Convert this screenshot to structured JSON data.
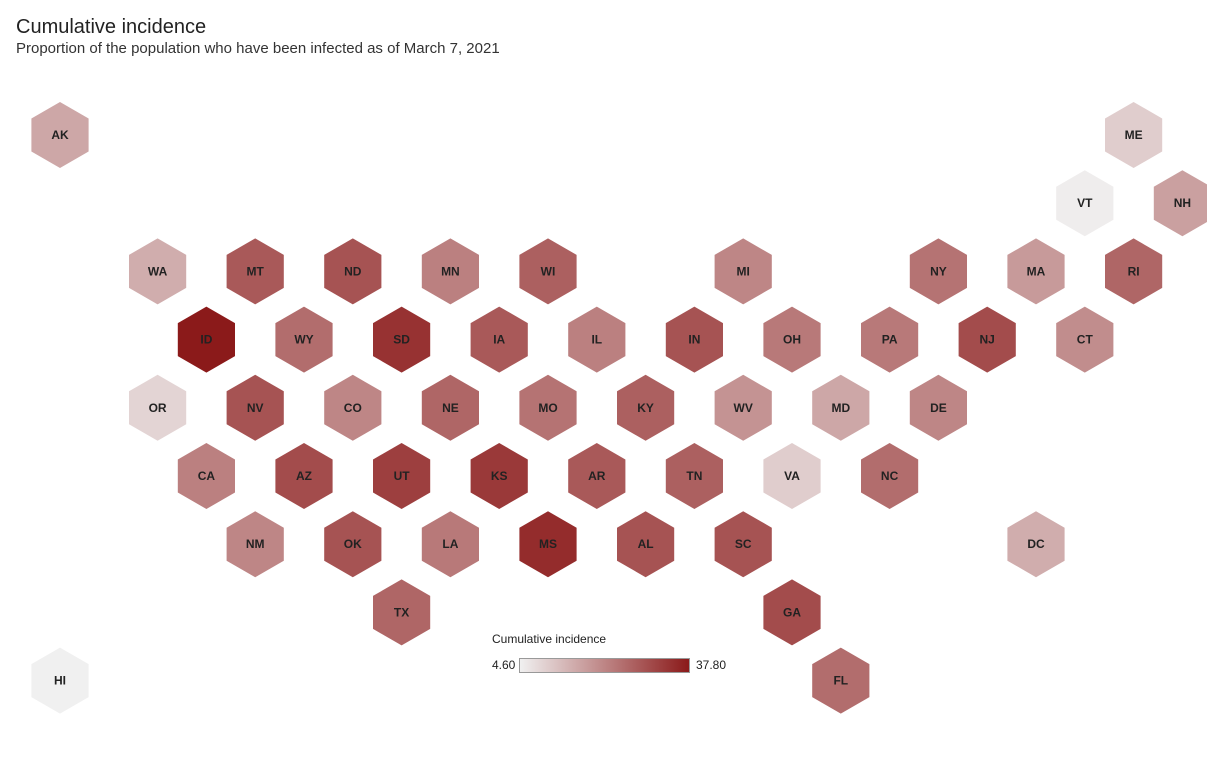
{
  "header": {
    "title": "Cumulative incidence",
    "subtitle": "Proportion of the population who have been infected as of March 7, 2021"
  },
  "legend": {
    "title": "Cumulative incidence",
    "min_label": "4.60",
    "max_label": "37.80",
    "color_low": "#f0f0f0",
    "color_high": "#8b1a1a"
  },
  "chart_data": {
    "type": "heatmap",
    "title": "Cumulative incidence",
    "subtitle": "Proportion of the population who have been infected as of March 7, 2021",
    "value_range": [
      4.6,
      37.8
    ],
    "states": [
      {
        "code": "AK",
        "row": 0,
        "col": 0,
        "value": 16
      },
      {
        "code": "ME",
        "row": 0,
        "col": 11,
        "value": 10
      },
      {
        "code": "VT",
        "row": 1,
        "col": 10,
        "value": 5
      },
      {
        "code": "NH",
        "row": 1,
        "col": 11,
        "value": 17
      },
      {
        "code": "WA",
        "row": 2,
        "col": 1,
        "value": 15
      },
      {
        "code": "MT",
        "row": 2,
        "col": 2,
        "value": 28
      },
      {
        "code": "ND",
        "row": 2,
        "col": 3,
        "value": 29
      },
      {
        "code": "MN",
        "row": 2,
        "col": 4,
        "value": 22
      },
      {
        "code": "WI",
        "row": 2,
        "col": 5,
        "value": 27
      },
      {
        "code": "MI",
        "row": 2,
        "col": 7,
        "value": 21
      },
      {
        "code": "NY",
        "row": 2,
        "col": 9,
        "value": 24
      },
      {
        "code": "MA",
        "row": 2,
        "col": 10,
        "value": 18
      },
      {
        "code": "RI",
        "row": 2,
        "col": 11,
        "value": 26
      },
      {
        "code": "ID",
        "row": 3,
        "col": 1,
        "value": 37.8
      },
      {
        "code": "WY",
        "row": 3,
        "col": 2,
        "value": 25
      },
      {
        "code": "SD",
        "row": 3,
        "col": 3,
        "value": 34
      },
      {
        "code": "IA",
        "row": 3,
        "col": 4,
        "value": 28
      },
      {
        "code": "IL",
        "row": 3,
        "col": 5,
        "value": 22
      },
      {
        "code": "IN",
        "row": 3,
        "col": 6,
        "value": 29
      },
      {
        "code": "OH",
        "row": 3,
        "col": 7,
        "value": 23
      },
      {
        "code": "PA",
        "row": 3,
        "col": 8,
        "value": 23
      },
      {
        "code": "NJ",
        "row": 3,
        "col": 9,
        "value": 30
      },
      {
        "code": "CT",
        "row": 3,
        "col": 10,
        "value": 20
      },
      {
        "code": "OR",
        "row": 4,
        "col": 1,
        "value": 9
      },
      {
        "code": "NV",
        "row": 4,
        "col": 2,
        "value": 29
      },
      {
        "code": "CO",
        "row": 4,
        "col": 3,
        "value": 21
      },
      {
        "code": "NE",
        "row": 4,
        "col": 4,
        "value": 26
      },
      {
        "code": "MO",
        "row": 4,
        "col": 5,
        "value": 24
      },
      {
        "code": "KY",
        "row": 4,
        "col": 6,
        "value": 27
      },
      {
        "code": "WV",
        "row": 4,
        "col": 7,
        "value": 19
      },
      {
        "code": "MD",
        "row": 4,
        "col": 8,
        "value": 16
      },
      {
        "code": "DE",
        "row": 4,
        "col": 9,
        "value": 21
      },
      {
        "code": "CA",
        "row": 5,
        "col": 1,
        "value": 22
      },
      {
        "code": "AZ",
        "row": 5,
        "col": 2,
        "value": 30
      },
      {
        "code": "UT",
        "row": 5,
        "col": 3,
        "value": 32
      },
      {
        "code": "KS",
        "row": 5,
        "col": 4,
        "value": 33
      },
      {
        "code": "AR",
        "row": 5,
        "col": 5,
        "value": 28
      },
      {
        "code": "TN",
        "row": 5,
        "col": 6,
        "value": 27
      },
      {
        "code": "VA",
        "row": 5,
        "col": 7,
        "value": 10
      },
      {
        "code": "NC",
        "row": 5,
        "col": 8,
        "value": 25
      },
      {
        "code": "NM",
        "row": 6,
        "col": 2,
        "value": 21
      },
      {
        "code": "OK",
        "row": 6,
        "col": 3,
        "value": 29
      },
      {
        "code": "LA",
        "row": 6,
        "col": 4,
        "value": 23
      },
      {
        "code": "MS",
        "row": 6,
        "col": 5,
        "value": 35
      },
      {
        "code": "AL",
        "row": 6,
        "col": 6,
        "value": 29
      },
      {
        "code": "SC",
        "row": 6,
        "col": 7,
        "value": 29
      },
      {
        "code": "DC",
        "row": 6,
        "col": 10,
        "value": 15
      },
      {
        "code": "TX",
        "row": 7,
        "col": 3,
        "value": 26
      },
      {
        "code": "GA",
        "row": 7,
        "col": 7,
        "value": 30
      },
      {
        "code": "HI",
        "row": 8,
        "col": 0,
        "value": 4.6
      },
      {
        "code": "FL",
        "row": 8,
        "col": 8,
        "value": 25
      }
    ]
  }
}
